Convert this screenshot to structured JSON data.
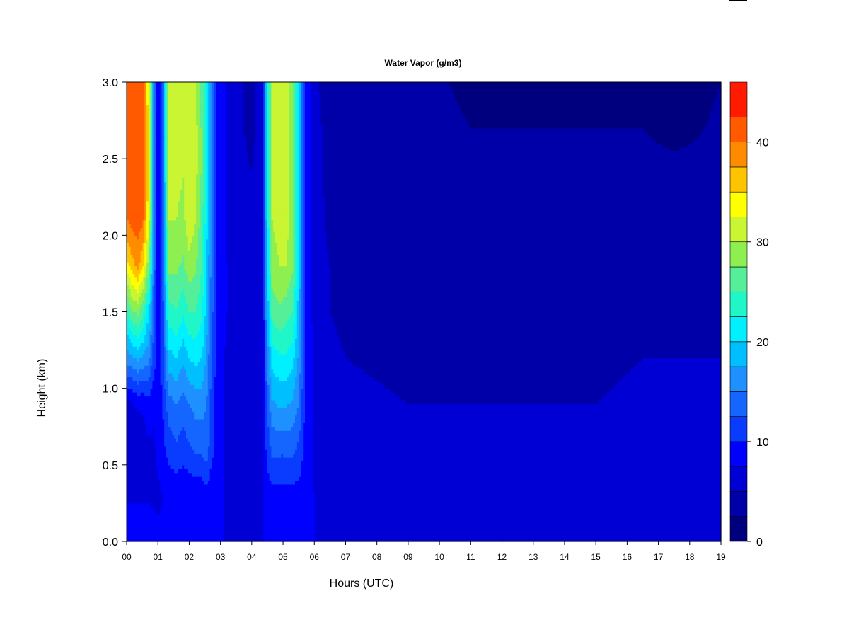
{
  "chart_data": {
    "type": "heatmap",
    "title": "Water Vapor (g/m3)",
    "xlabel": "Hours (UTC)",
    "ylabel": "Height (km)",
    "x_ticks": [
      "00",
      "01",
      "02",
      "03",
      "04",
      "05",
      "06",
      "07",
      "08",
      "09",
      "10",
      "11",
      "12",
      "13",
      "14",
      "15",
      "16",
      "17",
      "18",
      "19"
    ],
    "y_ticks": [
      "0.0",
      "0.5",
      "1.0",
      "1.5",
      "2.0",
      "2.5",
      "3.0"
    ],
    "xlim": [
      0,
      19
    ],
    "ylim": [
      0,
      3
    ],
    "colorbar": {
      "range": [
        0,
        46
      ],
      "tick_values": [
        0,
        10,
        20,
        30,
        40
      ],
      "tick_labels": [
        "0",
        "10",
        "20",
        "30",
        "40"
      ],
      "levels": [
        0,
        2.5,
        5,
        7.5,
        10,
        12.5,
        15,
        17.5,
        20,
        22.5,
        25,
        27.5,
        30,
        32.5,
        35,
        37.5,
        40,
        42.5,
        46
      ],
      "colors": [
        "#00007f",
        "#0000a8",
        "#0000d4",
        "#0000ff",
        "#0a3cff",
        "#1466ff",
        "#1e90ff",
        "#00bfff",
        "#00f0ff",
        "#20f7c8",
        "#55ee99",
        "#8ef050",
        "#c9f533",
        "#ffff00",
        "#ffc400",
        "#ff8c00",
        "#ff5a00",
        "#ff1a00",
        "#e00000",
        "#b00000",
        "#7f0000"
      ]
    },
    "column_profiles": [
      {
        "x": 0.0,
        "v": [
          9.5,
          7,
          5.5,
          7,
          16,
          23,
          34,
          40,
          41,
          40.5,
          40
        ]
      },
      {
        "x": 0.15,
        "v": [
          10,
          7,
          5,
          7,
          17,
          27,
          36,
          41,
          41,
          41,
          40.5
        ]
      },
      {
        "x": 0.35,
        "v": [
          10,
          7,
          5,
          8,
          18,
          28,
          38,
          41.5,
          41.5,
          41.5,
          41
        ]
      },
      {
        "x": 0.55,
        "v": [
          10,
          7,
          6,
          8,
          17,
          25,
          35,
          40,
          40.5,
          40,
          40
        ]
      },
      {
        "x": 0.7,
        "v": [
          9.5,
          7,
          7,
          9,
          16,
          20,
          28,
          33,
          34,
          34,
          33
        ]
      },
      {
        "x": 0.85,
        "v": [
          9,
          7,
          7,
          8,
          12,
          14,
          16,
          17,
          17,
          17,
          17
        ]
      },
      {
        "x": 1.0,
        "v": [
          8,
          7,
          8,
          9,
          9,
          9,
          8.5,
          8.5,
          9,
          9,
          9
        ]
      },
      {
        "x": 1.15,
        "v": [
          8,
          7.5,
          9,
          10,
          11,
          11,
          11,
          12,
          12,
          12,
          12
        ]
      },
      {
        "x": 1.35,
        "v": [
          9.5,
          8,
          11,
          14,
          19,
          24,
          28,
          30,
          31,
          31,
          31
        ]
      },
      {
        "x": 1.6,
        "v": [
          9.5,
          8,
          12,
          15,
          20,
          25,
          28,
          30,
          31,
          31,
          31
        ]
      },
      {
        "x": 1.8,
        "v": [
          9.5,
          8,
          11,
          14,
          18,
          23,
          27,
          29,
          30,
          30,
          30
        ]
      },
      {
        "x": 2.0,
        "v": [
          10,
          8,
          12,
          15,
          20,
          25,
          29,
          32,
          32,
          32,
          31
        ]
      },
      {
        "x": 2.2,
        "v": [
          10,
          8,
          13,
          16,
          21,
          25,
          28,
          30,
          31,
          31,
          30
        ]
      },
      {
        "x": 2.4,
        "v": [
          9,
          8,
          13,
          16,
          20,
          23,
          25,
          26,
          27,
          27,
          27
        ]
      },
      {
        "x": 2.55,
        "v": [
          9,
          9,
          14,
          15,
          17,
          19,
          20,
          21,
          21,
          21,
          21
        ]
      },
      {
        "x": 2.7,
        "v": [
          8.5,
          8.5,
          11,
          12,
          13,
          14,
          15,
          15,
          15,
          15,
          15
        ]
      },
      {
        "x": 2.85,
        "v": [
          8,
          8,
          9,
          9,
          9.5,
          10,
          10,
          10,
          10,
          10,
          10
        ]
      },
      {
        "x": 3.1,
        "v": [
          7.5,
          7.5,
          7.5,
          7.5,
          7.5,
          8,
          8,
          8,
          8,
          8,
          8
        ]
      },
      {
        "x": 3.5,
        "v": [
          7.5,
          7,
          6.5,
          6,
          6,
          6,
          6,
          5.5,
          5.5,
          5.5,
          5.5
        ]
      },
      {
        "x": 4.0,
        "v": [
          7.5,
          7,
          6,
          5.5,
          5,
          5,
          5,
          5,
          5,
          4.5,
          4.5
        ]
      },
      {
        "x": 4.35,
        "v": [
          7.5,
          7,
          6.5,
          6,
          6,
          6,
          6,
          6,
          6,
          6,
          6
        ]
      },
      {
        "x": 4.5,
        "v": [
          9,
          8.5,
          11,
          13,
          16,
          18,
          20,
          21,
          21,
          21,
          21
        ]
      },
      {
        "x": 4.65,
        "v": [
          9.5,
          9,
          13,
          17,
          21,
          26,
          29,
          30,
          30,
          30,
          30
        ]
      },
      {
        "x": 4.9,
        "v": [
          9.5,
          9,
          13,
          18,
          22,
          27,
          30,
          31,
          31,
          31,
          31
        ]
      },
      {
        "x": 5.1,
        "v": [
          9.5,
          9,
          13,
          18,
          22,
          26,
          30,
          31,
          31,
          31,
          31
        ]
      },
      {
        "x": 5.3,
        "v": [
          9.5,
          9,
          13,
          17,
          21,
          25,
          28,
          29,
          29,
          29,
          29
        ]
      },
      {
        "x": 5.5,
        "v": [
          9,
          9,
          12,
          15,
          17,
          19,
          20,
          20,
          20,
          20,
          20
        ]
      },
      {
        "x": 5.7,
        "v": [
          8.5,
          8.5,
          9,
          9.5,
          10,
          10,
          10,
          10,
          10,
          10,
          10
        ]
      },
      {
        "x": 6.0,
        "v": [
          7.5,
          7.5,
          7,
          7,
          7,
          6.5,
          6,
          6,
          5.5,
          5.5,
          5.5
        ]
      },
      {
        "x": 6.5,
        "v": [
          7.5,
          7,
          6.5,
          6,
          5.5,
          5,
          5,
          4.5,
          4.5,
          4.5,
          4
        ]
      },
      {
        "x": 7.0,
        "v": [
          7,
          6.5,
          6,
          5.5,
          5,
          4.5,
          4.5,
          4,
          4,
          4,
          4
        ]
      },
      {
        "x": 9.0,
        "v": [
          6,
          5.5,
          5.5,
          5,
          4.5,
          4,
          3.5,
          3.5,
          3.5,
          3.5,
          3.5
        ]
      },
      {
        "x": 11.0,
        "v": [
          6,
          5.5,
          5.5,
          5,
          4.5,
          4,
          3.5,
          3.5,
          3,
          2.5,
          2
        ]
      },
      {
        "x": 13.0,
        "v": [
          6,
          5.5,
          5.5,
          5,
          4.5,
          4,
          3.5,
          3.5,
          3,
          2.5,
          2
        ]
      },
      {
        "x": 15.0,
        "v": [
          6,
          5.5,
          5.5,
          5,
          4.5,
          4,
          3.5,
          3.5,
          3,
          2.5,
          2
        ]
      },
      {
        "x": 16.5,
        "v": [
          6,
          6,
          6,
          5.5,
          5,
          4.5,
          4,
          3.5,
          3,
          2.5,
          2
        ]
      },
      {
        "x": 17.5,
        "v": [
          6,
          6,
          6,
          5.5,
          5,
          4.5,
          4,
          3.5,
          3,
          2,
          1.8
        ]
      },
      {
        "x": 18.5,
        "v": [
          6,
          6,
          6,
          5.5,
          5,
          4.5,
          4,
          3.5,
          3,
          2.5,
          2
        ]
      },
      {
        "x": 19.0,
        "v": [
          6,
          6,
          6,
          5.5,
          5,
          4.5,
          4.5,
          4,
          3.5,
          3,
          2.5
        ]
      }
    ],
    "profile_heights_km": [
      0,
      0.3,
      0.6,
      0.9,
      1.2,
      1.5,
      1.8,
      2.1,
      2.4,
      2.7,
      3.0
    ],
    "grid": false,
    "legend": "colorbar-right"
  }
}
